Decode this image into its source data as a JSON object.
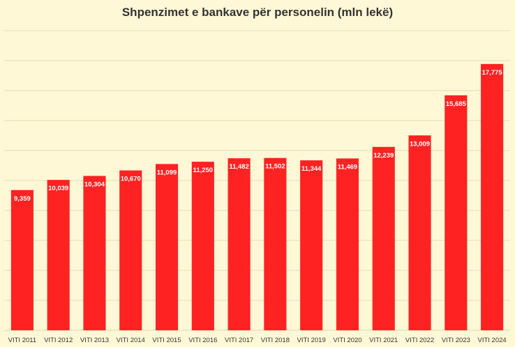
{
  "chart_data": {
    "type": "bar",
    "title": "Shpenzimet e bankave për personelin (mln lekë)",
    "categories": [
      "VITI 2011",
      "VITI 2012",
      "VITI 2013",
      "VITI 2014",
      "VITI 2015",
      "VITI 2016",
      "VITI 2017",
      "VITI 2018",
      "VITI 2019",
      "VITI 2020",
      "VITI 2021",
      "VITI 2022",
      "VITI 2023",
      "VITI 2024"
    ],
    "values": [
      9359,
      10039,
      10304,
      10670,
      11099,
      11250,
      11482,
      11502,
      11344,
      11469,
      12239,
      13009,
      15685,
      17775
    ],
    "data_labels": [
      "9,359",
      "10,039",
      "10,304",
      "10,670",
      "11,099",
      "11,250",
      "11,482",
      "11,502",
      "11,344",
      "11,469",
      "12,239",
      "13,009",
      "15,685",
      "17,775"
    ],
    "xlabel": "",
    "ylabel": "",
    "ylim": [
      0,
      20000
    ],
    "grid": true,
    "legend": "none",
    "colors": {
      "bar": "#ff2222",
      "background": "#fff8d6",
      "grid": "#e6dcb4",
      "label": "#ffffff",
      "axis_text": "#333333"
    }
  }
}
